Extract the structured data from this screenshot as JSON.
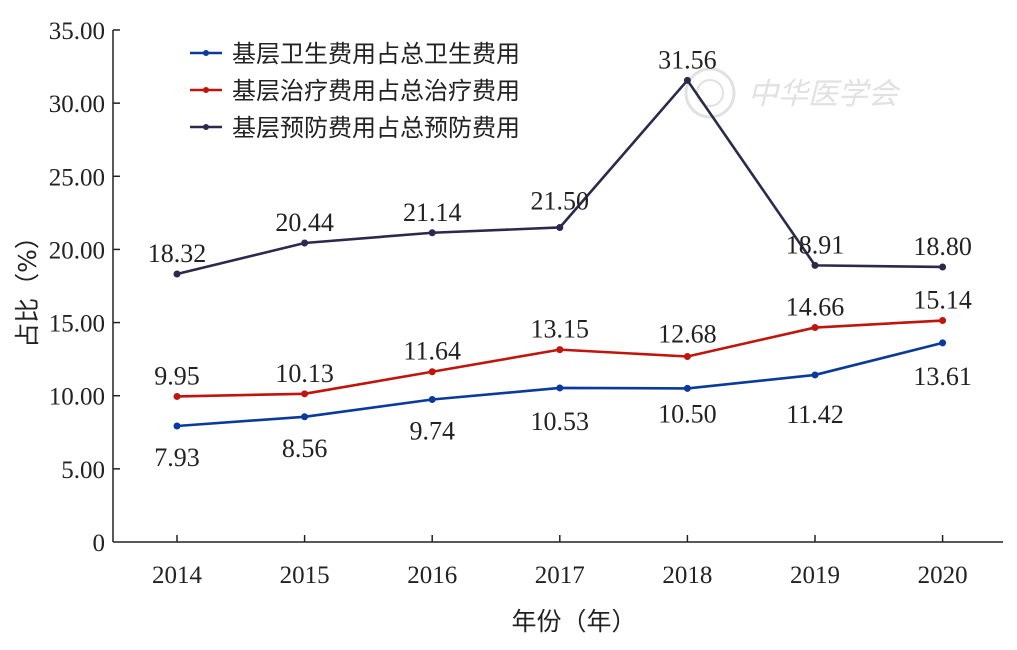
{
  "chart_data": {
    "type": "line",
    "categories": [
      "2014",
      "2015",
      "2016",
      "2017",
      "2018",
      "2019",
      "2020"
    ],
    "series": [
      {
        "name": "基层卫生费用占总卫生费用",
        "color": "#0a3a9c",
        "values": [
          7.93,
          8.56,
          9.74,
          10.53,
          10.5,
          11.42,
          13.61
        ],
        "labels": [
          "7.93",
          "8.56",
          "9.74",
          "10.53",
          "10.50",
          "11.42",
          "13.61"
        ]
      },
      {
        "name": "基层治疗费用占总治疗费用",
        "color": "#c0150c",
        "values": [
          9.95,
          10.13,
          11.64,
          13.15,
          12.68,
          14.66,
          15.14
        ],
        "labels": [
          "9.95",
          "10.13",
          "11.64",
          "13.15",
          "12.68",
          "14.66",
          "15.14"
        ]
      },
      {
        "name": "基层预防费用占总预防费用",
        "color": "#2b2a4c",
        "values": [
          18.32,
          20.44,
          21.14,
          21.5,
          31.56,
          18.91,
          18.8
        ],
        "labels": [
          "18.32",
          "20.44",
          "21.14",
          "21.50",
          "31.56",
          "18.91",
          "18.80"
        ]
      }
    ],
    "xlabel": "年份（年）",
    "ylabel": "占比（%）",
    "ylim": [
      0,
      35
    ],
    "yticks": [
      "0",
      "5.00",
      "10.00",
      "15.00",
      "20.00",
      "25.00",
      "30.00",
      "35.00"
    ],
    "legend_position": "top-left",
    "grid": false
  },
  "watermark": {
    "text": "中华医学会"
  }
}
